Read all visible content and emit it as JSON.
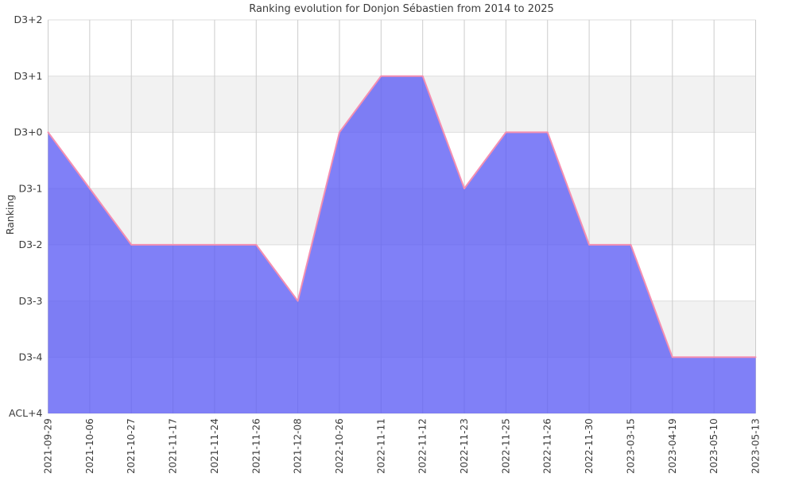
{
  "chart_data": {
    "type": "area",
    "title": "Ranking evolution for Donjon Sébastien from 2014 to 2025",
    "xlabel": "",
    "ylabel": "Ranking",
    "legend_position": "none",
    "grid": true,
    "band_pattern": "alternating gray bands on rows 2, 4, 6 from top",
    "y_levels_top_to_bottom": [
      "D3+2",
      "D3+1",
      "D3+0",
      "D3-1",
      "D3-2",
      "D3-3",
      "D3-4",
      "ACL+4"
    ],
    "baseline_level": "ACL+4",
    "x": [
      "2021-09-29",
      "2021-10-06",
      "2021-10-27",
      "2021-11-17",
      "2021-11-24",
      "2021-11-26",
      "2021-12-08",
      "2022-10-26",
      "2022-11-11",
      "2022-11-12",
      "2022-11-23",
      "2022-11-25",
      "2022-11-26",
      "2022-11-30",
      "2023-03-15",
      "2023-04-19",
      "2023-05-10",
      "2023-05-13"
    ],
    "values": [
      "D3+0",
      "D3-1",
      "D3-2",
      "D3-2",
      "D3-2",
      "D3-2",
      "D3-3",
      "D3+0",
      "D3+1",
      "D3+1",
      "D3-1",
      "D3+0",
      "D3+0",
      "D3-2",
      "D3-2",
      "D3-4",
      "D3-4",
      "D3-4"
    ],
    "colors": {
      "fill": "#5C5CF5",
      "fill_opacity": 0.78,
      "line": "#F48FB1",
      "band": "#F2F2F2",
      "grid_vertical": "#CCCCCC",
      "grid_horizontal": "#DDDDDD",
      "text": "#3B3B3B"
    }
  }
}
